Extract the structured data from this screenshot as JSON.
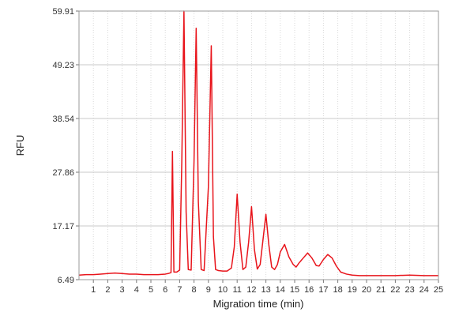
{
  "chart_data": {
    "type": "line",
    "title": "",
    "xlabel": "Migration time (min)",
    "ylabel": "RFU",
    "xlim": [
      0,
      25
    ],
    "ylim": [
      6.49,
      59.91
    ],
    "x_ticks": [
      1,
      2,
      3,
      4,
      5,
      6,
      7,
      8,
      9,
      10,
      11,
      12,
      13,
      14,
      15,
      16,
      17,
      18,
      19,
      20,
      21,
      22,
      23,
      24,
      25
    ],
    "x_tick_labels": [
      "1",
      "2",
      "3",
      "4",
      "5",
      "6",
      "7",
      "8",
      "9",
      "10",
      "11",
      "12",
      "13",
      "14",
      "15",
      "16",
      "17",
      "18",
      "19",
      "20",
      "21",
      "22",
      "23",
      "24",
      "25"
    ],
    "y_ticks": [
      6.49,
      17.17,
      27.86,
      38.54,
      49.23,
      59.91
    ],
    "y_tick_labels": [
      "6.49",
      "17.17",
      "27.86",
      "38.54",
      "49.23",
      "59.91"
    ],
    "grid": true,
    "line_color": "#e8141b",
    "series": [
      {
        "x": [
          0,
          0.5,
          1,
          1.5,
          2,
          2.5,
          3,
          3.5,
          4,
          4.5,
          5,
          5.5,
          6,
          6.2,
          6.4,
          6.5,
          6.6,
          6.8,
          7.0,
          7.15,
          7.3,
          7.45,
          7.6,
          7.8,
          8.0,
          8.15,
          8.3,
          8.5,
          8.7,
          9.0,
          9.2,
          9.35,
          9.5,
          9.7,
          10.0,
          10.3,
          10.6,
          10.8,
          11.0,
          11.2,
          11.4,
          11.6,
          11.8,
          12.0,
          12.2,
          12.4,
          12.6,
          12.8,
          13.0,
          13.2,
          13.4,
          13.6,
          13.8,
          14.0,
          14.3,
          14.6,
          14.9,
          15.1,
          15.3,
          15.6,
          15.9,
          16.2,
          16.5,
          16.7,
          17.0,
          17.3,
          17.6,
          17.9,
          18.2,
          18.6,
          19.0,
          19.5,
          20,
          21,
          22,
          23,
          24,
          25
        ],
        "y": [
          7.4,
          7.5,
          7.5,
          7.6,
          7.7,
          7.8,
          7.7,
          7.6,
          7.6,
          7.5,
          7.5,
          7.5,
          7.6,
          7.7,
          7.9,
          32.0,
          8.0,
          8.0,
          8.4,
          30.0,
          59.9,
          20.0,
          8.5,
          8.4,
          30.0,
          56.5,
          22.0,
          8.5,
          8.3,
          25.0,
          53.0,
          15.0,
          8.5,
          8.3,
          8.2,
          8.2,
          8.8,
          13.0,
          23.5,
          14.0,
          8.5,
          9.0,
          14.0,
          21.0,
          12.5,
          8.6,
          9.5,
          14.5,
          19.5,
          13.5,
          9.0,
          8.5,
          9.5,
          12.0,
          13.5,
          11.0,
          9.5,
          9.0,
          9.8,
          10.8,
          11.8,
          10.8,
          9.3,
          9.2,
          10.5,
          11.5,
          10.8,
          9.2,
          8.0,
          7.6,
          7.4,
          7.3,
          7.3,
          7.3,
          7.3,
          7.4,
          7.3,
          7.3
        ]
      }
    ]
  }
}
